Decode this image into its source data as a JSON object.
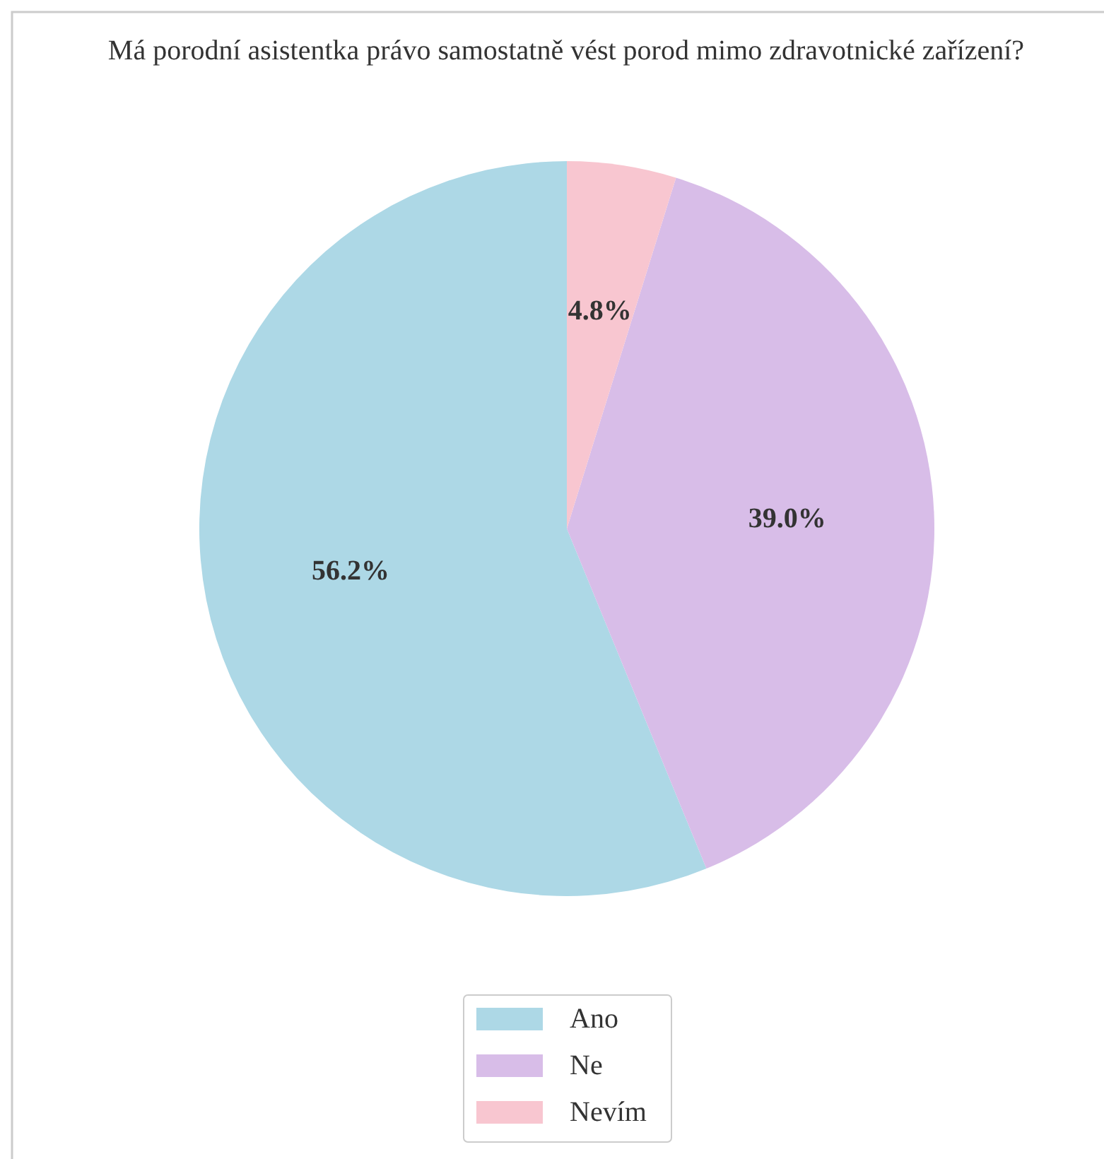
{
  "chart_data": {
    "type": "pie",
    "title": "Má porodní asistentka právo samostatně vést porod mimo zdravotnické zařízení?",
    "categories": [
      "Ano",
      "Ne",
      "Nevím"
    ],
    "values": [
      56.2,
      39.0,
      4.8
    ],
    "colors": [
      "#add8e6",
      "#d8bde8",
      "#f8c6d0"
    ],
    "value_labels": [
      "56.2%",
      "39.0%",
      "4.8%"
    ],
    "legend": "bottom"
  }
}
